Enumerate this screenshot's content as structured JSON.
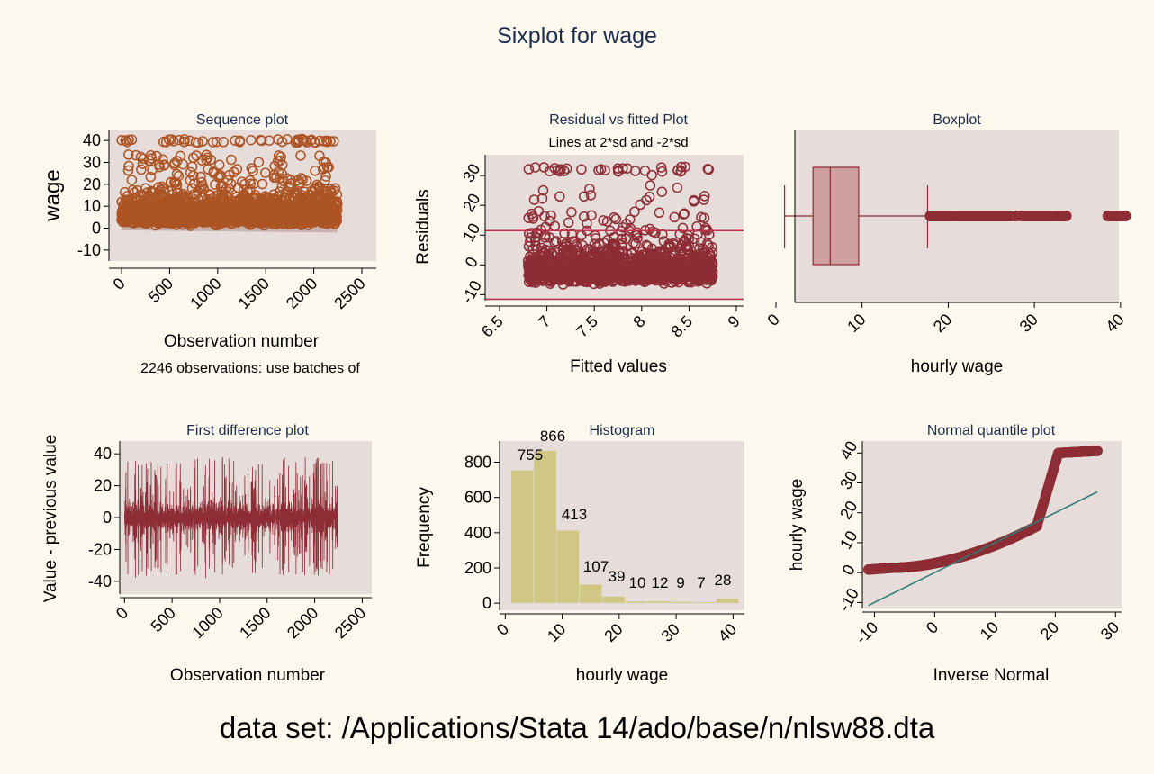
{
  "title": "Sixplot for wage",
  "footer": "data set: /Applications/Stata 14/ado/base/n/nlsw88.dta",
  "colors": {
    "background": "#fdf8ee",
    "plot_region": "#e6dcda",
    "marker": "#8e2d35",
    "orange": "#ad5424",
    "histogram": "#cfc783",
    "fit_line": "#2e7b77"
  },
  "chart_data": [
    {
      "type": "scatter",
      "title": "Sequence plot",
      "xlabel": "Observation number",
      "ylabel": "wage",
      "note": "2246 observations: use batches of",
      "xlim": [
        0,
        2500
      ],
      "ylim": [
        -15,
        45
      ],
      "xticks": [
        "0",
        "500",
        "1000",
        "1500",
        "2000",
        "2500"
      ],
      "yticks": [
        "40",
        "30",
        "20",
        "10",
        "0",
        "-10"
      ],
      "n": 2246,
      "series": [
        {
          "name": "wage",
          "summary": {
            "dense_band": [
              2,
              18
            ],
            "max": 40.7,
            "min": 1
          }
        }
      ]
    },
    {
      "type": "scatter",
      "title": "Residual vs fitted Plot",
      "subtitle": "Lines at 2*sd and -2*sd",
      "xlabel": "Fitted values",
      "ylabel": "Residuals",
      "xlim": [
        6.5,
        9
      ],
      "ylim": [
        -12,
        37
      ],
      "xticks": [
        "6.5",
        "7",
        "7.5",
        "8",
        "8.5",
        "9"
      ],
      "yticks": [
        "30",
        "20",
        "10",
        "0",
        "-10"
      ],
      "ref_lines": [
        11.5,
        -11.5
      ],
      "series": [
        {
          "name": "residuals",
          "summary": {
            "fitted_range": [
              6.8,
              8.75
            ],
            "dense_band": [
              -4,
              10
            ],
            "max": 33
          }
        }
      ]
    },
    {
      "type": "box",
      "title": "Boxplot",
      "xlabel": "hourly wage",
      "xlim": [
        0,
        42
      ],
      "xticks": [
        "0",
        "10",
        "20",
        "30",
        "40"
      ],
      "box": {
        "whisker_low": 1,
        "q1": 4.3,
        "median": 6.3,
        "q3": 9.6,
        "whisker_high": 17.6
      },
      "outliers_range": [
        17.8,
        40.7
      ]
    },
    {
      "type": "line",
      "title": "First difference plot",
      "xlabel": "Observation number",
      "ylabel": "Value - previous value",
      "xlim": [
        -50,
        2600
      ],
      "ylim": [
        -48,
        48
      ],
      "xticks": [
        "0",
        "500",
        "1000",
        "1500",
        "2000",
        "2500"
      ],
      "yticks": [
        "40",
        "20",
        "0",
        "-20",
        "-40"
      ],
      "series": [
        {
          "name": "first difference",
          "summary": {
            "band": [
              -12,
              12
            ],
            "min": -38,
            "max": 39
          }
        }
      ]
    },
    {
      "type": "bar",
      "title": "Histogram",
      "xlabel": "hourly wage",
      "ylabel": "Frequency",
      "xlim": [
        -1,
        42
      ],
      "ylim": [
        -40,
        920
      ],
      "xticks": [
        "0",
        "10",
        "20",
        "30",
        "40"
      ],
      "yticks": [
        "800",
        "600",
        "400",
        "200",
        "0"
      ],
      "bins": [
        [
          1,
          5
        ],
        [
          5,
          9
        ],
        [
          9,
          13
        ],
        [
          13,
          17
        ],
        [
          17,
          21
        ],
        [
          21,
          25
        ],
        [
          25,
          29
        ],
        [
          29,
          33
        ],
        [
          33,
          37
        ],
        [
          37,
          41
        ]
      ],
      "values": [
        755,
        866,
        413,
        107,
        39,
        10,
        12,
        9,
        7,
        28
      ],
      "labels": [
        "755",
        "866",
        "413",
        "107",
        "39",
        "10",
        "12",
        "9",
        "7",
        "28"
      ]
    },
    {
      "type": "scatter",
      "title": "Normal quantile plot",
      "xlabel": "Inverse Normal",
      "ylabel": "hourly wage",
      "xlim": [
        -12,
        31
      ],
      "ylim": [
        -12,
        44
      ],
      "xticks": [
        "-10",
        "0",
        "10",
        "20",
        "30"
      ],
      "yticks": [
        "40",
        "30",
        "20",
        "10",
        "0",
        "-10"
      ],
      "fit_line": [
        [
          -11,
          -11
        ],
        [
          27,
          27
        ]
      ],
      "series": [
        {
          "name": "quantiles",
          "summary": {
            "x_range": [
              -11,
              27
            ],
            "y_range": [
              1,
              40.7
            ]
          }
        }
      ]
    }
  ]
}
